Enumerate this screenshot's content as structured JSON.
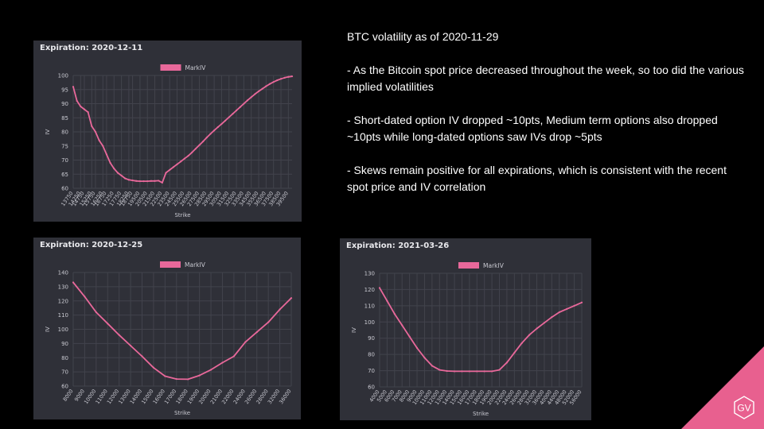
{
  "notes": {
    "title": "BTC volatility as of 2020-11-29",
    "items": [
      "- As the Bitcoin spot price decreased throughout the week, so too did the various implied volatilities",
      "- Short-dated option IV dropped ~10pts, Medium term options also dropped ~10pts while long-dated options saw IVs drop ~5pts",
      "- Skews remain positive for all expirations, which is consistent with the recent spot price and IV correlation"
    ]
  },
  "logo": {
    "text": "GV",
    "color": "#e8608f"
  },
  "colors": {
    "panel": "#2f3038",
    "grid": "#42434c",
    "line": "#e8689a",
    "text": "#c9c9d1"
  },
  "chart_data": [
    {
      "type": "line",
      "title": "Expiration: 2020-12-11",
      "xlabel": "Strike",
      "ylabel": "IV",
      "legend": "top-center",
      "grid": true,
      "ylim": [
        60,
        100
      ],
      "yticks": [
        60,
        65,
        70,
        75,
        80,
        85,
        90,
        95,
        100
      ],
      "categories": [
        "13750",
        "14000",
        "14250",
        "14750",
        "15000",
        "15250",
        "15750",
        "16000",
        "16250",
        "16750",
        "17000",
        "17250",
        "17500",
        "17750",
        "18000",
        "18250",
        "18750",
        "19000",
        "19500",
        "20000",
        "20500",
        "21000",
        "21500",
        "22000",
        "22500",
        "23000",
        "23500",
        "24000",
        "24500",
        "25000",
        "25500",
        "26000",
        "26500",
        "27000",
        "27500",
        "28000",
        "28500",
        "29000",
        "29500",
        "30000",
        "30500",
        "31000",
        "31500",
        "32000",
        "32500",
        "33000",
        "33500",
        "34000",
        "34500",
        "35000",
        "35500",
        "36000",
        "36500",
        "37000",
        "37500",
        "38000",
        "38500",
        "39000",
        "39500",
        "40000"
      ],
      "xticks": [
        "13750",
        "14250",
        "14750",
        "15250",
        "15750",
        "16250",
        "16750",
        "17250",
        "17750",
        "18250",
        "18750",
        "19500",
        "20500",
        "21500",
        "22500",
        "23500",
        "24500",
        "25500",
        "26500",
        "27500",
        "28500",
        "29500",
        "30500",
        "31500",
        "32500",
        "33500",
        "34500",
        "35500",
        "36500",
        "37500",
        "38500",
        "39500"
      ],
      "series": [
        {
          "name": "MarkIV",
          "values": [
            96,
            91,
            89,
            88,
            87,
            82,
            80,
            77,
            75,
            72,
            69,
            67,
            65.5,
            64.5,
            63.5,
            63,
            62.8,
            62.6,
            62.5,
            62.5,
            62.5,
            62.6,
            62.6,
            62.7,
            62,
            65.5,
            66.5,
            67.5,
            68.5,
            69.5,
            70.5,
            71.5,
            72.7,
            74,
            75.3,
            76.6,
            78,
            79.3,
            80.5,
            81.7,
            82.8,
            84,
            85.2,
            86.4,
            87.6,
            88.8,
            90,
            91.2,
            92.3,
            93.4,
            94.4,
            95.3,
            96.2,
            97,
            97.7,
            98.3,
            98.8,
            99.2,
            99.5,
            99.7
          ]
        }
      ]
    },
    {
      "type": "line",
      "title": "Expiration: 2020-12-25",
      "xlabel": "Strike",
      "ylabel": "IV",
      "legend": "top-center",
      "grid": true,
      "ylim": [
        60,
        140
      ],
      "yticks": [
        60,
        70,
        80,
        90,
        100,
        110,
        120,
        130,
        140
      ],
      "categories": [
        "8000",
        "9000",
        "10000",
        "11000",
        "12000",
        "13000",
        "14000",
        "15000",
        "16000",
        "17000",
        "18000",
        "19000",
        "20000",
        "21000",
        "22000",
        "24000",
        "26000",
        "28000",
        "32000",
        "36000"
      ],
      "xticks": [
        "8000",
        "9000",
        "10000",
        "11000",
        "12000",
        "13000",
        "14000",
        "15000",
        "16000",
        "17000",
        "18000",
        "19000",
        "20000",
        "21000",
        "22000",
        "24000",
        "26000",
        "28000",
        "32000",
        "36000"
      ],
      "series": [
        {
          "name": "MarkIV",
          "values": [
            133,
            123,
            112,
            104,
            96,
            88.5,
            81,
            73,
            67,
            65,
            64.8,
            67.5,
            71.5,
            76.5,
            81,
            91,
            98,
            105,
            114,
            122
          ]
        }
      ]
    },
    {
      "type": "line",
      "title": "Expiration: 2021-03-26",
      "xlabel": "Strike",
      "ylabel": "IV",
      "legend": "top-center",
      "grid": true,
      "ylim": [
        60,
        130
      ],
      "yticks": [
        60,
        70,
        80,
        90,
        100,
        110,
        120,
        130
      ],
      "categories": [
        "4000",
        "5000",
        "6000",
        "7000",
        "8000",
        "9000",
        "10000",
        "11000",
        "12000",
        "13000",
        "14000",
        "15000",
        "16000",
        "17000",
        "18000",
        "19000",
        "20000",
        "22000",
        "24000",
        "26000",
        "28000",
        "32000",
        "36000",
        "40000",
        "44000",
        "48000",
        "52000",
        "56000"
      ],
      "xticks": [
        "4000",
        "5000",
        "6000",
        "7000",
        "8000",
        "9000",
        "10000",
        "11000",
        "12000",
        "13000",
        "14000",
        "15000",
        "16000",
        "17000",
        "18000",
        "19000",
        "20000",
        "22000",
        "24000",
        "26000",
        "28000",
        "32000",
        "36000",
        "40000",
        "44000",
        "48000",
        "52000",
        "56000"
      ],
      "series": [
        {
          "name": "MarkIV",
          "values": [
            121,
            113,
            105,
            98,
            91,
            84,
            78,
            73,
            70.5,
            69.8,
            69.6,
            69.6,
            69.6,
            69.6,
            69.6,
            69.6,
            70.5,
            75,
            81,
            87,
            92,
            96,
            99.5,
            103,
            106,
            108,
            110,
            112
          ]
        }
      ]
    }
  ]
}
